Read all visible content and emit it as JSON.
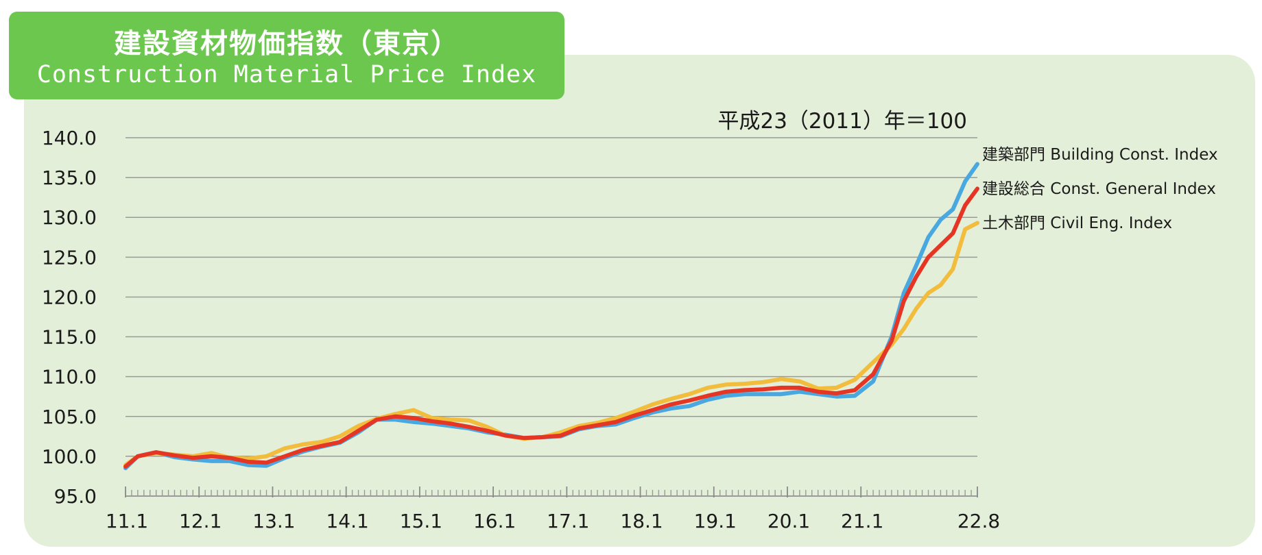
{
  "title": {
    "ja": "建設資材物価指数（東京）",
    "en": "Construction Material Price Index"
  },
  "chart_data": {
    "type": "line",
    "base_note": "平成23（2011）年＝100",
    "ylim": [
      95,
      140
    ],
    "y_ticks": [
      "140.0",
      "135.0",
      "130.0",
      "125.0",
      "120.0",
      "115.0",
      "110.0",
      "105.0",
      "100.0",
      "95.0"
    ],
    "x_start": "2011-01",
    "x_end": "2022-08",
    "x_ticks": [
      {
        "label": "11.1",
        "month": "2011-01"
      },
      {
        "label": "12.1",
        "month": "2012-01"
      },
      {
        "label": "13.1",
        "month": "2013-01"
      },
      {
        "label": "14.1",
        "month": "2014-01"
      },
      {
        "label": "15.1",
        "month": "2015-01"
      },
      {
        "label": "16.1",
        "month": "2016-01"
      },
      {
        "label": "17.1",
        "month": "2017-01"
      },
      {
        "label": "18.1",
        "month": "2018-01"
      },
      {
        "label": "19.1",
        "month": "2019-01"
      },
      {
        "label": "20.1",
        "month": "2020-01"
      },
      {
        "label": "21.1",
        "month": "2021-01"
      },
      {
        "label": "22.8",
        "month": "2022-08"
      }
    ],
    "grid": true,
    "legend_position": "right",
    "series": [
      {
        "name": "建築部門  Building Const. Index",
        "color": "#4aa8e0",
        "points": [
          [
            "2011-01",
            98.5
          ],
          [
            "2011-03",
            100.0
          ],
          [
            "2011-06",
            100.5
          ],
          [
            "2011-09",
            99.9
          ],
          [
            "2011-12",
            99.6
          ],
          [
            "2012-03",
            99.4
          ],
          [
            "2012-06",
            99.4
          ],
          [
            "2012-09",
            98.9
          ],
          [
            "2012-12",
            98.8
          ],
          [
            "2013-03",
            99.8
          ],
          [
            "2013-06",
            100.6
          ],
          [
            "2013-09",
            101.2
          ],
          [
            "2013-12",
            101.7
          ],
          [
            "2014-03",
            103.0
          ],
          [
            "2014-06",
            104.6
          ],
          [
            "2014-09",
            104.6
          ],
          [
            "2014-12",
            104.3
          ],
          [
            "2015-03",
            104.1
          ],
          [
            "2015-06",
            103.8
          ],
          [
            "2015-09",
            103.5
          ],
          [
            "2015-12",
            103.0
          ],
          [
            "2016-03",
            102.7
          ],
          [
            "2016-06",
            102.3
          ],
          [
            "2016-09",
            102.4
          ],
          [
            "2016-12",
            102.5
          ],
          [
            "2017-03",
            103.4
          ],
          [
            "2017-06",
            103.8
          ],
          [
            "2017-09",
            104.0
          ],
          [
            "2017-12",
            104.8
          ],
          [
            "2018-03",
            105.5
          ],
          [
            "2018-06",
            106.0
          ],
          [
            "2018-09",
            106.3
          ],
          [
            "2018-12",
            107.1
          ],
          [
            "2019-03",
            107.6
          ],
          [
            "2019-06",
            107.8
          ],
          [
            "2019-09",
            107.8
          ],
          [
            "2019-12",
            107.8
          ],
          [
            "2020-03",
            108.1
          ],
          [
            "2020-06",
            107.8
          ],
          [
            "2020-09",
            107.5
          ],
          [
            "2020-12",
            107.6
          ],
          [
            "2021-03",
            109.4
          ],
          [
            "2021-06",
            115.0
          ],
          [
            "2021-08",
            120.5
          ],
          [
            "2021-10",
            123.9
          ],
          [
            "2021-12",
            127.5
          ],
          [
            "2022-02",
            129.7
          ],
          [
            "2022-04",
            131.0
          ],
          [
            "2022-06",
            134.5
          ],
          [
            "2022-08",
            136.7
          ]
        ]
      },
      {
        "name": "建設総合  Const. General Index",
        "color": "#e53524",
        "points": [
          [
            "2011-01",
            98.7
          ],
          [
            "2011-03",
            100.0
          ],
          [
            "2011-06",
            100.5
          ],
          [
            "2011-09",
            100.1
          ],
          [
            "2011-12",
            99.8
          ],
          [
            "2012-03",
            100.0
          ],
          [
            "2012-06",
            99.8
          ],
          [
            "2012-09",
            99.3
          ],
          [
            "2012-12",
            99.2
          ],
          [
            "2013-03",
            100.0
          ],
          [
            "2013-06",
            100.8
          ],
          [
            "2013-09",
            101.3
          ],
          [
            "2013-12",
            101.8
          ],
          [
            "2014-03",
            103.2
          ],
          [
            "2014-06",
            104.6
          ],
          [
            "2014-09",
            105.0
          ],
          [
            "2014-12",
            104.8
          ],
          [
            "2015-03",
            104.4
          ],
          [
            "2015-06",
            104.1
          ],
          [
            "2015-09",
            103.7
          ],
          [
            "2015-12",
            103.2
          ],
          [
            "2016-03",
            102.6
          ],
          [
            "2016-06",
            102.3
          ],
          [
            "2016-09",
            102.4
          ],
          [
            "2016-12",
            102.6
          ],
          [
            "2017-03",
            103.5
          ],
          [
            "2017-06",
            103.9
          ],
          [
            "2017-09",
            104.3
          ],
          [
            "2017-12",
            105.1
          ],
          [
            "2018-03",
            105.8
          ],
          [
            "2018-06",
            106.5
          ],
          [
            "2018-09",
            107.0
          ],
          [
            "2018-12",
            107.6
          ],
          [
            "2019-03",
            108.1
          ],
          [
            "2019-06",
            108.3
          ],
          [
            "2019-09",
            108.4
          ],
          [
            "2019-12",
            108.6
          ],
          [
            "2020-03",
            108.6
          ],
          [
            "2020-06",
            108.1
          ],
          [
            "2020-09",
            107.9
          ],
          [
            "2020-12",
            108.3
          ],
          [
            "2021-03",
            110.3
          ],
          [
            "2021-06",
            114.5
          ],
          [
            "2021-08",
            119.5
          ],
          [
            "2021-10",
            122.5
          ],
          [
            "2021-12",
            125.0
          ],
          [
            "2022-02",
            126.5
          ],
          [
            "2022-04",
            128.0
          ],
          [
            "2022-06",
            131.5
          ],
          [
            "2022-08",
            133.6
          ]
        ]
      },
      {
        "name": "土木部門  Civil Eng. Index",
        "color": "#f2bc3d",
        "points": [
          [
            "2011-01",
            98.9
          ],
          [
            "2011-03",
            100.0
          ],
          [
            "2011-06",
            100.4
          ],
          [
            "2011-09",
            100.2
          ],
          [
            "2011-12",
            100.0
          ],
          [
            "2012-03",
            100.4
          ],
          [
            "2012-06",
            99.8
          ],
          [
            "2012-09",
            99.7
          ],
          [
            "2012-12",
            100.0
          ],
          [
            "2013-03",
            101.0
          ],
          [
            "2013-06",
            101.5
          ],
          [
            "2013-09",
            101.8
          ],
          [
            "2013-12",
            102.5
          ],
          [
            "2014-03",
            103.8
          ],
          [
            "2014-06",
            104.7
          ],
          [
            "2014-09",
            105.3
          ],
          [
            "2014-12",
            105.8
          ],
          [
            "2015-03",
            104.8
          ],
          [
            "2015-06",
            104.6
          ],
          [
            "2015-09",
            104.5
          ],
          [
            "2015-12",
            103.7
          ],
          [
            "2016-03",
            102.6
          ],
          [
            "2016-06",
            102.2
          ],
          [
            "2016-09",
            102.4
          ],
          [
            "2016-12",
            103.0
          ],
          [
            "2017-03",
            103.8
          ],
          [
            "2017-06",
            104.2
          ],
          [
            "2017-09",
            104.8
          ],
          [
            "2017-12",
            105.6
          ],
          [
            "2018-03",
            106.5
          ],
          [
            "2018-06",
            107.2
          ],
          [
            "2018-09",
            107.8
          ],
          [
            "2018-12",
            108.6
          ],
          [
            "2019-03",
            109.0
          ],
          [
            "2019-06",
            109.1
          ],
          [
            "2019-09",
            109.3
          ],
          [
            "2019-12",
            109.7
          ],
          [
            "2020-03",
            109.4
          ],
          [
            "2020-06",
            108.5
          ],
          [
            "2020-09",
            108.6
          ],
          [
            "2020-12",
            109.6
          ],
          [
            "2021-03",
            111.8
          ],
          [
            "2021-06",
            114.0
          ],
          [
            "2021-08",
            116.0
          ],
          [
            "2021-10",
            118.5
          ],
          [
            "2021-12",
            120.5
          ],
          [
            "2022-02",
            121.5
          ],
          [
            "2022-04",
            123.5
          ],
          [
            "2022-06",
            128.5
          ],
          [
            "2022-08",
            129.3
          ]
        ]
      }
    ]
  }
}
